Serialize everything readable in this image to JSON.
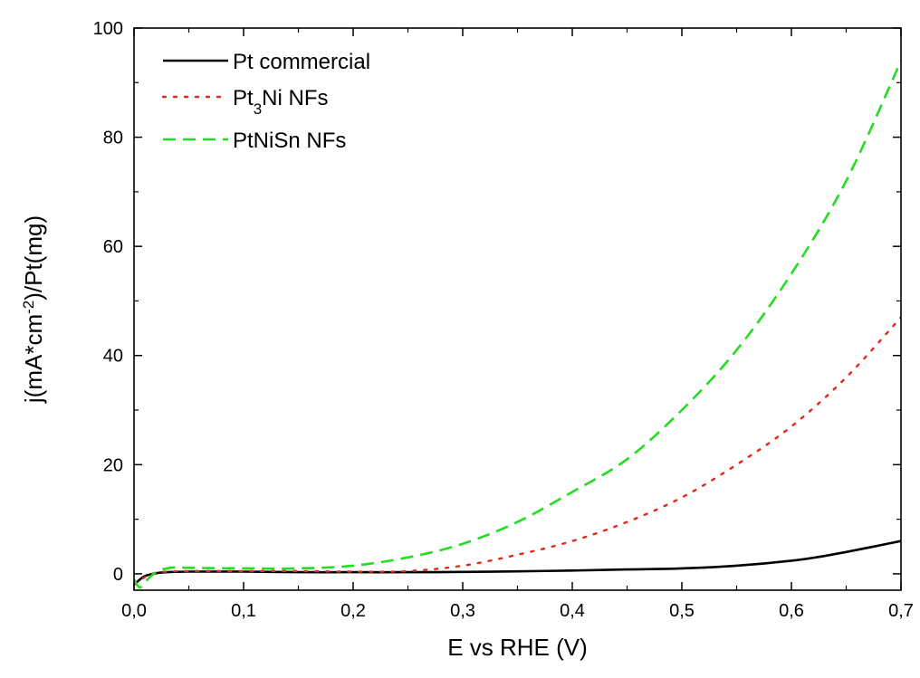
{
  "chart_data": {
    "type": "line",
    "title": "",
    "xlabel": "E vs RHE (V)",
    "ylabel": {
      "part1": "j(mA*cm",
      "sup": "-2",
      "part2": ")/Pt(mg)"
    },
    "xlim": [
      0,
      0.7
    ],
    "ylim": [
      -3,
      100
    ],
    "x_ticks": [
      {
        "value": 0.0,
        "label": "0,0"
      },
      {
        "value": 0.1,
        "label": "0,1"
      },
      {
        "value": 0.2,
        "label": "0,2"
      },
      {
        "value": 0.3,
        "label": "0,3"
      },
      {
        "value": 0.4,
        "label": "0,4"
      },
      {
        "value": 0.5,
        "label": "0,5"
      },
      {
        "value": 0.6,
        "label": "0,6"
      },
      {
        "value": 0.7,
        "label": "0,7"
      }
    ],
    "y_ticks": [
      {
        "value": 0,
        "label": "0"
      },
      {
        "value": 20,
        "label": "20"
      },
      {
        "value": 40,
        "label": "40"
      },
      {
        "value": 60,
        "label": "60"
      },
      {
        "value": 80,
        "label": "80"
      },
      {
        "value": 100,
        "label": "100"
      }
    ],
    "grid": false,
    "legend_position": "top-left",
    "series": [
      {
        "name": "Pt commercial",
        "legend": {
          "main": "Pt commercial"
        },
        "color": "#000000",
        "style": "solid",
        "x": [
          0.0,
          0.005,
          0.01,
          0.02,
          0.03,
          0.05,
          0.1,
          0.15,
          0.2,
          0.25,
          0.3,
          0.35,
          0.4,
          0.45,
          0.5,
          0.55,
          0.6,
          0.625,
          0.65,
          0.675,
          0.7
        ],
        "y": [
          -2.0,
          -1.1,
          -0.4,
          0.1,
          0.3,
          0.4,
          0.4,
          0.3,
          0.3,
          0.3,
          0.35,
          0.45,
          0.6,
          0.8,
          1.0,
          1.5,
          2.4,
          3.1,
          4.0,
          5.0,
          6.0
        ]
      },
      {
        "name": "Pt3Ni NFs",
        "legend": {
          "main": "Pt",
          "sub": "3",
          "rest": "Ni NFs"
        },
        "color": "#e8251a",
        "style": "dotted",
        "x": [
          0.0,
          0.01,
          0.02,
          0.03,
          0.05,
          0.1,
          0.15,
          0.2,
          0.25,
          0.3,
          0.35,
          0.4,
          0.45,
          0.5,
          0.55,
          0.6,
          0.65,
          0.7
        ],
        "y": [
          -2.0,
          -0.6,
          0.2,
          0.4,
          0.5,
          0.5,
          0.5,
          0.4,
          0.5,
          1.5,
          3.5,
          6.0,
          9.5,
          14.0,
          20.0,
          27.0,
          36.0,
          47.0
        ]
      },
      {
        "name": "PtNiSn NFs",
        "legend": {
          "main": "PtNiSn NFs"
        },
        "color": "#22dd22",
        "style": "dashed",
        "x": [
          0.0,
          0.005,
          0.01,
          0.02,
          0.03,
          0.04,
          0.05,
          0.1,
          0.15,
          0.2,
          0.25,
          0.3,
          0.35,
          0.4,
          0.45,
          0.5,
          0.55,
          0.6,
          0.65,
          0.7
        ],
        "y": [
          -1.0,
          -2.5,
          -1.5,
          0.3,
          1.0,
          1.2,
          1.1,
          1.0,
          1.0,
          1.5,
          3.0,
          5.5,
          9.5,
          15.0,
          21.0,
          30.0,
          41.0,
          55.0,
          72.0,
          94.0
        ]
      }
    ]
  }
}
